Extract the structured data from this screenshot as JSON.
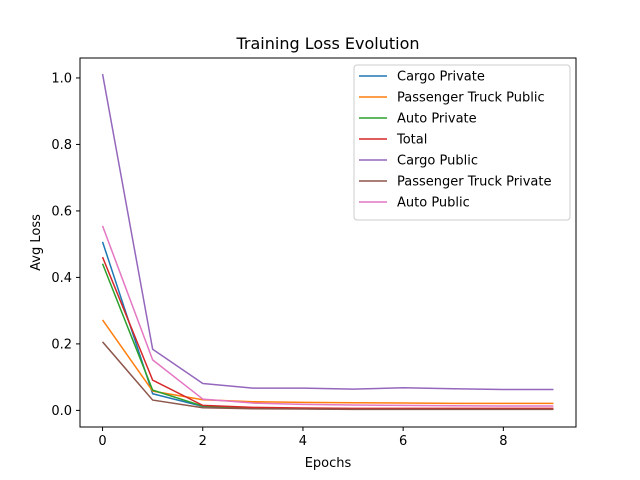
{
  "chart_data": {
    "type": "line",
    "title": "Training Loss Evolution",
    "xlabel": "Epochs",
    "ylabel": "Avg Loss",
    "xlim": [
      -0.45,
      9.45
    ],
    "ylim": [
      -0.05,
      1.06
    ],
    "xticks": [
      0,
      2,
      4,
      6,
      8
    ],
    "yticks": [
      0.0,
      0.2,
      0.4,
      0.6,
      0.8,
      1.0
    ],
    "xtick_labels": [
      "0",
      "2",
      "4",
      "6",
      "8"
    ],
    "ytick_labels": [
      "0.0",
      "0.2",
      "0.4",
      "0.6",
      "0.8",
      "1.0"
    ],
    "grid": false,
    "legend_position": "top-right",
    "x": [
      0,
      1,
      2,
      3,
      4,
      5,
      6,
      7,
      8,
      9
    ],
    "series": [
      {
        "name": "Cargo Private",
        "color": "#1f77b4",
        "values": [
          0.507,
          0.05,
          0.012,
          0.007,
          0.005,
          0.004,
          0.004,
          0.004,
          0.004,
          0.004
        ]
      },
      {
        "name": "Passenger Truck Public",
        "color": "#ff7f0e",
        "values": [
          0.272,
          0.058,
          0.032,
          0.026,
          0.024,
          0.023,
          0.022,
          0.021,
          0.021,
          0.021
        ]
      },
      {
        "name": "Auto Private",
        "color": "#2ca02c",
        "values": [
          0.441,
          0.061,
          0.013,
          0.007,
          0.005,
          0.004,
          0.004,
          0.004,
          0.004,
          0.004
        ]
      },
      {
        "name": "Total",
        "color": "#d62728",
        "values": [
          0.461,
          0.091,
          0.015,
          0.009,
          0.007,
          0.006,
          0.006,
          0.006,
          0.006,
          0.006
        ]
      },
      {
        "name": "Cargo Public",
        "color": "#9467bd",
        "values": [
          1.012,
          0.184,
          0.081,
          0.067,
          0.067,
          0.064,
          0.068,
          0.065,
          0.063,
          0.063
        ]
      },
      {
        "name": "Passenger Truck Private",
        "color": "#8c564b",
        "values": [
          0.206,
          0.031,
          0.008,
          0.005,
          0.004,
          0.003,
          0.003,
          0.003,
          0.003,
          0.003
        ]
      },
      {
        "name": "Auto Public",
        "color": "#e377c2",
        "values": [
          0.555,
          0.152,
          0.034,
          0.022,
          0.018,
          0.016,
          0.015,
          0.014,
          0.013,
          0.013
        ]
      }
    ]
  }
}
